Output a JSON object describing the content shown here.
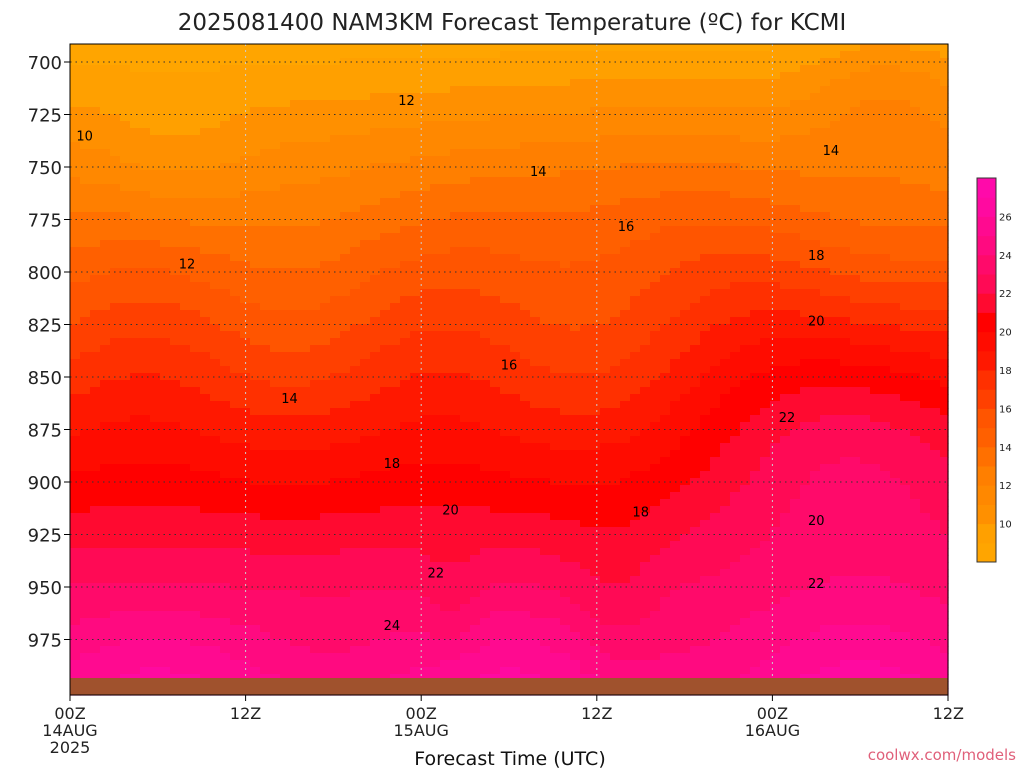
{
  "chart_data": {
    "type": "heatmap",
    "title": "2025081400 NAM3KM Forecast Temperature (ºC) for KCMI",
    "xlabel": "Forecast Time (UTC)",
    "credit": "coolwx.com/models",
    "x_ticks": [
      {
        "hour": 0,
        "lines": [
          "00Z",
          "14AUG",
          "2025"
        ]
      },
      {
        "hour": 12,
        "lines": [
          "12Z"
        ]
      },
      {
        "hour": 24,
        "lines": [
          "00Z",
          "15AUG"
        ]
      },
      {
        "hour": 36,
        "lines": [
          "12Z"
        ]
      },
      {
        "hour": 48,
        "lines": [
          "00Z",
          "16AUG"
        ]
      },
      {
        "hour": 60,
        "lines": [
          "12Z"
        ]
      }
    ],
    "xlim": [
      0,
      60
    ],
    "y_ticks": [
      700,
      725,
      750,
      775,
      800,
      825,
      850,
      875,
      900,
      925,
      950,
      975
    ],
    "ylim": [
      1000,
      692
    ],
    "colorbar": {
      "labels": [
        10,
        12,
        14,
        16,
        18,
        20,
        22,
        24,
        26
      ],
      "levels": [
        8,
        9,
        10,
        11,
        12,
        13,
        14,
        15,
        16,
        17,
        18,
        19,
        20,
        21,
        22,
        23,
        24,
        25,
        26,
        27,
        28
      ],
      "colors": [
        "#ffa500",
        "#ffa000",
        "#ff9000",
        "#ff8800",
        "#ff7f00",
        "#ff7000",
        "#ff6000",
        "#ff5500",
        "#ff4000",
        "#ff3000",
        "#ff1800",
        "#ff0c00",
        "#ff0000",
        "#ff0a30",
        "#ff0a55",
        "#ff0a6a",
        "#ff0a80",
        "#ff0a90",
        "#ff0aa0",
        "#ff0aaa"
      ]
    },
    "contour_labels": [
      {
        "text": "10",
        "hour": 1.0,
        "p": 735
      },
      {
        "text": "12",
        "hour": 23.0,
        "p": 718
      },
      {
        "text": "12",
        "hour": 8.0,
        "p": 796
      },
      {
        "text": "14",
        "hour": 32.0,
        "p": 752
      },
      {
        "text": "14",
        "hour": 52.0,
        "p": 742
      },
      {
        "text": "14",
        "hour": 15.0,
        "p": 860
      },
      {
        "text": "16",
        "hour": 38.0,
        "p": 778
      },
      {
        "text": "16",
        "hour": 30.0,
        "p": 844
      },
      {
        "text": "18",
        "hour": 51.0,
        "p": 792
      },
      {
        "text": "18",
        "hour": 22.0,
        "p": 891
      },
      {
        "text": "18",
        "hour": 39.0,
        "p": 914
      },
      {
        "text": "20",
        "hour": 51.0,
        "p": 823
      },
      {
        "text": "20",
        "hour": 26.0,
        "p": 913
      },
      {
        "text": "20",
        "hour": 51.0,
        "p": 918
      },
      {
        "text": "22",
        "hour": 49.0,
        "p": 869
      },
      {
        "text": "22",
        "hour": 25.0,
        "p": 943
      },
      {
        "text": "22",
        "hour": 51.0,
        "p": 948
      },
      {
        "text": "24",
        "hour": 22.0,
        "p": 968
      }
    ]
  }
}
